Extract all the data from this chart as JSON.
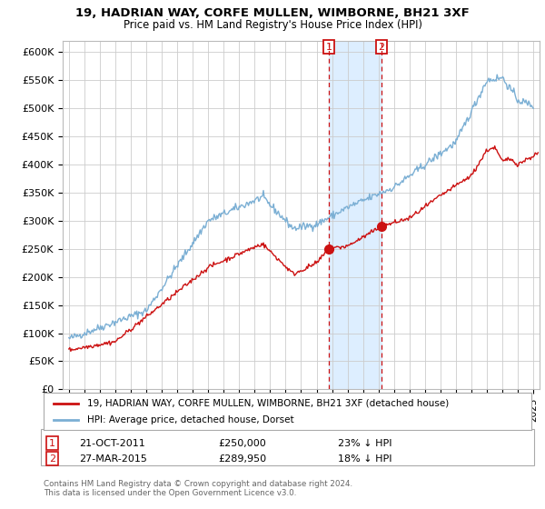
{
  "title": "19, HADRIAN WAY, CORFE MULLEN, WIMBORNE, BH21 3XF",
  "subtitle": "Price paid vs. HM Land Registry's House Price Index (HPI)",
  "ylabel_ticks": [
    "£0",
    "£50K",
    "£100K",
    "£150K",
    "£200K",
    "£250K",
    "£300K",
    "£350K",
    "£400K",
    "£450K",
    "£500K",
    "£550K",
    "£600K"
  ],
  "ytick_values": [
    0,
    50000,
    100000,
    150000,
    200000,
    250000,
    300000,
    350000,
    400000,
    450000,
    500000,
    550000,
    600000
  ],
  "ylim": [
    0,
    620000
  ],
  "xlim_start": 1994.6,
  "xlim_end": 2025.4,
  "hpi_color": "#7bafd4",
  "hpi_shade_color": "#ddeeff",
  "price_color": "#cc1111",
  "marker1_date": 2011.8,
  "marker1_price": 250000,
  "marker1_label": "1",
  "marker2_date": 2015.2,
  "marker2_price": 289950,
  "marker2_label": "2",
  "legend_line1": "19, HADRIAN WAY, CORFE MULLEN, WIMBORNE, BH21 3XF (detached house)",
  "legend_line2": "HPI: Average price, detached house, Dorset",
  "footnote": "Contains HM Land Registry data © Crown copyright and database right 2024.\nThis data is licensed under the Open Government Licence v3.0.",
  "background_color": "#ffffff",
  "grid_color": "#cccccc"
}
